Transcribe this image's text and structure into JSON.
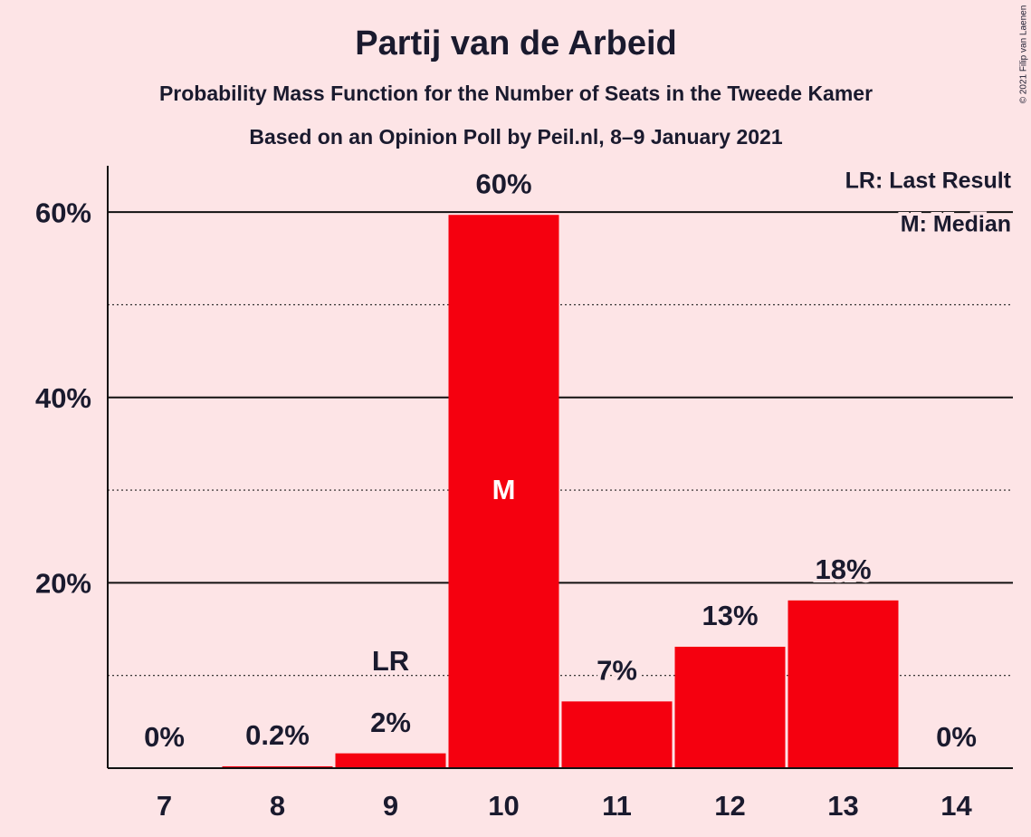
{
  "chart_data": {
    "type": "bar",
    "title": "Partij van de Arbeid",
    "subtitle": "Probability Mass Function for the Number of Seats in the Tweede Kamer",
    "subtitle2": "Based on an Opinion Poll by Peil.nl, 8–9 January 2021",
    "copyright": "© 2021 Filip van Laenen",
    "legend": [
      "LR: Last Result",
      "M: Median"
    ],
    "categories": [
      "7",
      "8",
      "9",
      "10",
      "11",
      "12",
      "13",
      "14"
    ],
    "values": [
      0,
      0.2,
      1.6,
      59.7,
      7.2,
      13.1,
      18.1,
      0
    ],
    "value_labels": [
      "0%",
      "0.2%",
      "2%",
      "60%",
      "7%",
      "13%",
      "18%",
      "0%"
    ],
    "annotations": [
      {
        "category": "9",
        "text": "LR"
      },
      {
        "category": "10",
        "text": "M"
      }
    ],
    "color": "#f5000f",
    "ylim": [
      0,
      65
    ],
    "yticks": [
      {
        "value": 20,
        "label": "20%"
      },
      {
        "value": 40,
        "label": "40%"
      },
      {
        "value": 60,
        "label": "60%"
      }
    ],
    "minor_yticks": [
      10,
      30,
      50
    ],
    "grid": true
  }
}
